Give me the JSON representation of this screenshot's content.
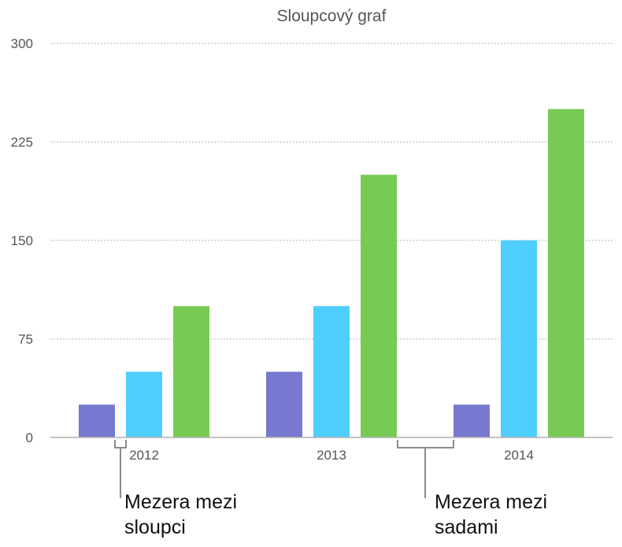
{
  "chart_data": {
    "type": "bar",
    "title": "Sloupcový graf",
    "xlabel": "",
    "ylabel": "",
    "categories": [
      "2012",
      "2013",
      "2014"
    ],
    "series": [
      {
        "values": [
          25,
          50,
          25
        ],
        "color": "#7679cf"
      },
      {
        "values": [
          50,
          100,
          150
        ],
        "color": "#4fcdfd"
      },
      {
        "values": [
          100,
          200,
          250
        ],
        "color": "#78ca55"
      }
    ],
    "ylim": [
      0,
      300
    ],
    "yticks": [
      "0",
      "75",
      "150",
      "225",
      "300"
    ],
    "grid": true,
    "legend": "none"
  },
  "annotations": {
    "bar_gap": {
      "line1": "Mezera mezi",
      "line2": "sloupci"
    },
    "set_gap": {
      "line1": "Mezera mezi",
      "line2": "sadami"
    }
  }
}
